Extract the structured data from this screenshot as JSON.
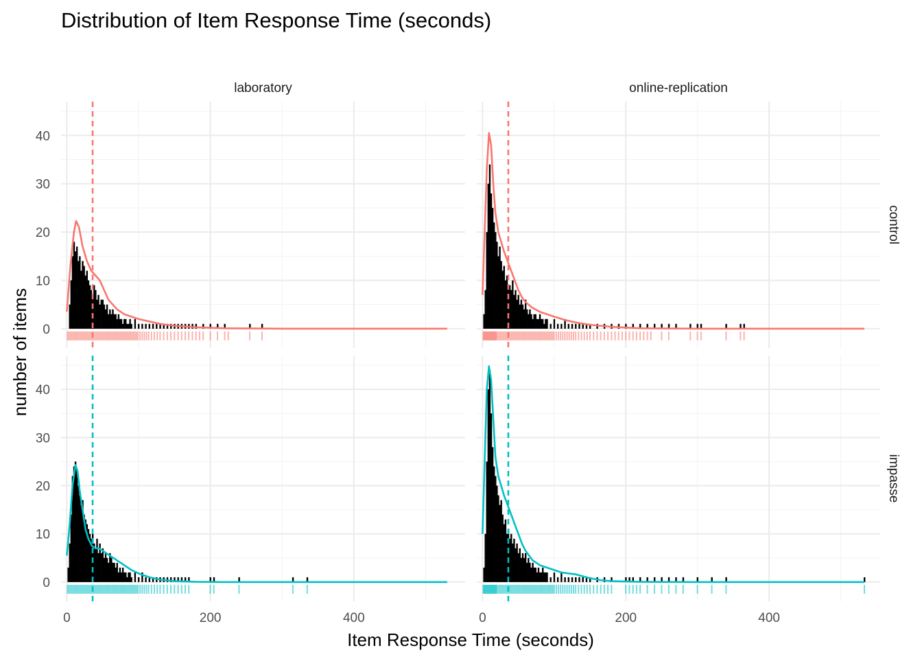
{
  "chart_data": {
    "type": "histogram",
    "title": "Distribution of Item Response Time (seconds)",
    "xlabel": "Item Response Time (seconds)",
    "ylabel": "number of items",
    "xlim": [
      -8,
      555
    ],
    "ylim": [
      -4,
      47
    ],
    "x_ticks": [
      0,
      200,
      400
    ],
    "y_ticks": [
      0,
      10,
      20,
      30,
      40
    ],
    "grid": true,
    "col_facets": [
      "laboratory",
      "online-replication"
    ],
    "row_facets": [
      "control",
      "impasse"
    ],
    "colors": {
      "control": "#F8766D",
      "impasse": "#00BFC4",
      "bars": "#000000",
      "grid": "#EBEBEB"
    },
    "mean_lines": {
      "control": 36,
      "impasse": 36
    },
    "panels": [
      {
        "col": "laboratory",
        "row": "control",
        "color": "#F8766D",
        "bars": {
          "x": [
            4,
            6,
            8,
            10,
            12,
            14,
            16,
            18,
            20,
            22,
            24,
            26,
            28,
            30,
            32,
            34,
            36,
            38,
            40,
            42,
            44,
            46,
            48,
            50,
            52,
            54,
            56,
            58,
            60,
            62,
            64,
            66,
            68,
            70,
            72,
            74,
            76,
            78,
            80,
            82,
            84,
            86,
            88,
            90,
            95,
            100,
            105,
            110,
            115,
            120,
            125,
            130,
            135,
            140,
            145,
            150,
            155,
            160,
            165,
            170,
            175,
            180,
            190,
            200,
            210,
            220,
            255,
            272
          ],
          "y": [
            5,
            10,
            15,
            18,
            16,
            17,
            14,
            15,
            12,
            14,
            13,
            11,
            12,
            10,
            9,
            8,
            7,
            9,
            8,
            6,
            7,
            5,
            6,
            6,
            5,
            4,
            5,
            3,
            4,
            3,
            4,
            3,
            3,
            2,
            3,
            2,
            2,
            1,
            2,
            2,
            1,
            1,
            2,
            1,
            2,
            1,
            1,
            1,
            1,
            1,
            1,
            1,
            1,
            1,
            1,
            1,
            1,
            1,
            1,
            1,
            1,
            1,
            1,
            1,
            1,
            1,
            1,
            1
          ]
        },
        "density": {
          "x": [
            0,
            5,
            10,
            13,
            17,
            22,
            28,
            34,
            40,
            46,
            52,
            58,
            64,
            70,
            80,
            90,
            100,
            115,
            130,
            150,
            180,
            220,
            300,
            400,
            530
          ],
          "y": [
            3.5,
            13,
            20,
            22.3,
            21,
            17,
            14,
            12,
            11,
            10,
            8,
            6,
            5,
            4,
            3,
            2.5,
            2,
            1.5,
            1,
            0.6,
            0.3,
            0.1,
            0,
            0,
            0
          ]
        },
        "rug": [
          1,
          3,
          5,
          7,
          9,
          11,
          13,
          15,
          17,
          19,
          21,
          23,
          25,
          27,
          29,
          31,
          33,
          35,
          37,
          39,
          41,
          43,
          45,
          47,
          49,
          51,
          53,
          55,
          57,
          59,
          61,
          63,
          65,
          67,
          69,
          71,
          73,
          75,
          77,
          79,
          81,
          83,
          85,
          87,
          89,
          91,
          93,
          95,
          97,
          99,
          102,
          105,
          108,
          111,
          114,
          118,
          122,
          126,
          130,
          135,
          140,
          145,
          150,
          155,
          160,
          165,
          170,
          175,
          180,
          185,
          190,
          200,
          210,
          220,
          225,
          255,
          272
        ]
      },
      {
        "col": "online-replication",
        "row": "control",
        "color": "#F8766D",
        "bars": {
          "x": [
            2,
            4,
            6,
            8,
            10,
            12,
            14,
            16,
            18,
            20,
            22,
            24,
            26,
            28,
            30,
            32,
            34,
            36,
            38,
            40,
            42,
            44,
            46,
            48,
            50,
            52,
            54,
            56,
            58,
            60,
            62,
            64,
            66,
            68,
            70,
            72,
            74,
            76,
            78,
            80,
            82,
            84,
            86,
            88,
            90,
            95,
            100,
            105,
            110,
            115,
            120,
            125,
            130,
            135,
            140,
            145,
            150,
            160,
            170,
            180,
            190,
            200,
            210,
            220,
            230,
            240,
            250,
            260,
            270,
            290,
            300,
            305,
            340,
            360,
            365
          ],
          "y": [
            3,
            8,
            20,
            30,
            34,
            28,
            25,
            22,
            20,
            18,
            15,
            17,
            14,
            12,
            13,
            10,
            11,
            9,
            9,
            8,
            10,
            7,
            8,
            6,
            7,
            5,
            6,
            5,
            4,
            6,
            4,
            3,
            4,
            3,
            2,
            3,
            3,
            2,
            2,
            3,
            2,
            2,
            1,
            2,
            2,
            1,
            2,
            1,
            1,
            2,
            1,
            1,
            1,
            1,
            1,
            1,
            1,
            1,
            1,
            1,
            1,
            1,
            1,
            1,
            1,
            1,
            1,
            1,
            1,
            1,
            1,
            1,
            1,
            1,
            1
          ]
        },
        "density": {
          "x": [
            0,
            3,
            6,
            9,
            12,
            15,
            18,
            22,
            26,
            30,
            35,
            40,
            45,
            50,
            55,
            60,
            70,
            80,
            90,
            100,
            115,
            130,
            150,
            180,
            220,
            300,
            400,
            533
          ],
          "y": [
            7,
            20,
            33,
            40.5,
            38,
            30,
            24,
            20,
            18,
            16,
            14,
            12,
            10,
            8,
            6.5,
            5.5,
            4.3,
            3.5,
            3,
            2.5,
            1.8,
            1.3,
            0.8,
            0.4,
            0.1,
            0,
            0,
            0
          ]
        },
        "rug": [
          1,
          2,
          3,
          4,
          5,
          6,
          7,
          8,
          9,
          10,
          11,
          12,
          13,
          14,
          15,
          16,
          17,
          18,
          19,
          20,
          22,
          24,
          26,
          28,
          30,
          32,
          34,
          36,
          38,
          40,
          42,
          44,
          46,
          48,
          50,
          52,
          54,
          56,
          58,
          60,
          62,
          64,
          66,
          68,
          70,
          72,
          74,
          76,
          78,
          80,
          82,
          84,
          86,
          88,
          90,
          92,
          94,
          96,
          98,
          100,
          103,
          106,
          109,
          112,
          115,
          118,
          121,
          124,
          127,
          130,
          134,
          138,
          142,
          146,
          150,
          155,
          160,
          165,
          170,
          175,
          180,
          185,
          190,
          195,
          200,
          205,
          210,
          215,
          220,
          225,
          230,
          235,
          250,
          260,
          290,
          300,
          305,
          340,
          360,
          365
        ]
      },
      {
        "col": "laboratory",
        "row": "impasse",
        "color": "#00BFC4",
        "bars": {
          "x": [
            2,
            4,
            6,
            8,
            10,
            12,
            14,
            16,
            18,
            20,
            22,
            24,
            26,
            28,
            30,
            32,
            34,
            36,
            38,
            40,
            42,
            44,
            46,
            48,
            50,
            52,
            54,
            56,
            58,
            60,
            62,
            64,
            66,
            68,
            70,
            72,
            74,
            76,
            78,
            80,
            82,
            84,
            86,
            88,
            90,
            95,
            100,
            105,
            110,
            115,
            120,
            125,
            130,
            135,
            140,
            145,
            150,
            155,
            160,
            165,
            170,
            200,
            205,
            240,
            315,
            335
          ],
          "y": [
            3,
            8,
            14,
            22,
            24,
            25,
            23,
            20,
            18,
            16,
            17,
            14,
            13,
            12,
            11,
            10,
            9,
            10,
            8,
            7,
            9,
            6,
            8,
            6,
            7,
            5,
            6,
            5,
            4,
            6,
            5,
            4,
            4,
            3,
            4,
            2,
            3,
            2,
            3,
            2,
            2,
            1,
            2,
            2,
            1,
            2,
            1,
            2,
            1,
            1,
            1,
            1,
            1,
            1,
            1,
            1,
            1,
            1,
            1,
            1,
            1,
            1,
            1,
            1,
            1,
            1
          ]
        },
        "density": {
          "x": [
            0,
            4,
            8,
            12,
            15,
            18,
            22,
            26,
            30,
            35,
            40,
            45,
            50,
            55,
            60,
            65,
            70,
            80,
            90,
            100,
            115,
            130,
            150,
            180,
            220,
            300,
            400,
            530
          ],
          "y": [
            5.5,
            12,
            20,
            24.3,
            23,
            19,
            15,
            11,
            9,
            7.5,
            7,
            7,
            6.5,
            6,
            5.5,
            5,
            4.5,
            3.5,
            2.5,
            1.8,
            1,
            0.5,
            0.2,
            0.05,
            0,
            0,
            0,
            0
          ]
        },
        "rug": [
          1,
          3,
          5,
          7,
          9,
          11,
          13,
          15,
          17,
          19,
          21,
          23,
          25,
          27,
          29,
          31,
          33,
          35,
          37,
          39,
          41,
          43,
          45,
          47,
          49,
          51,
          53,
          55,
          57,
          59,
          61,
          63,
          65,
          67,
          69,
          71,
          73,
          75,
          77,
          79,
          81,
          83,
          85,
          87,
          89,
          91,
          93,
          95,
          97,
          99,
          102,
          105,
          108,
          111,
          114,
          118,
          122,
          126,
          130,
          135,
          140,
          145,
          150,
          155,
          160,
          165,
          170,
          200,
          205,
          240,
          315,
          335
        ]
      },
      {
        "col": "online-replication",
        "row": "impasse",
        "color": "#00BFC4",
        "bars": {
          "x": [
            2,
            4,
            6,
            8,
            10,
            12,
            14,
            16,
            18,
            20,
            22,
            24,
            26,
            28,
            30,
            32,
            34,
            36,
            38,
            40,
            42,
            44,
            46,
            48,
            50,
            52,
            54,
            56,
            58,
            60,
            62,
            64,
            66,
            68,
            70,
            72,
            74,
            76,
            78,
            80,
            82,
            84,
            86,
            88,
            90,
            95,
            100,
            105,
            110,
            115,
            120,
            125,
            130,
            135,
            140,
            145,
            150,
            160,
            170,
            180,
            200,
            205,
            210,
            220,
            230,
            240,
            250,
            260,
            270,
            280,
            300,
            320,
            340,
            533
          ],
          "y": [
            3,
            10,
            25,
            40,
            44,
            35,
            28,
            24,
            22,
            20,
            18,
            16,
            17,
            14,
            12,
            13,
            10,
            11,
            9,
            10,
            8,
            9,
            7,
            8,
            6,
            7,
            5,
            6,
            5,
            6,
            4,
            5,
            4,
            3,
            4,
            3,
            3,
            2,
            3,
            2,
            2,
            3,
            2,
            2,
            2,
            1,
            2,
            1,
            2,
            1,
            1,
            1,
            1,
            1,
            1,
            1,
            1,
            1,
            1,
            1,
            1,
            1,
            1,
            1,
            1,
            1,
            1,
            1,
            1,
            1,
            1,
            1,
            1,
            1
          ]
        },
        "density": {
          "x": [
            0,
            3,
            6,
            9,
            12,
            15,
            18,
            22,
            26,
            30,
            35,
            40,
            45,
            50,
            55,
            60,
            70,
            80,
            90,
            100,
            110,
            120,
            130,
            140,
            150,
            165,
            180,
            220,
            300,
            400,
            533
          ],
          "y": [
            10,
            25,
            40,
            44.8,
            42,
            34,
            26,
            22,
            20,
            18,
            16,
            14,
            12,
            10,
            8,
            6.5,
            4.5,
            3.5,
            3,
            2.5,
            2,
            1.8,
            1.6,
            1.2,
            0.8,
            0.4,
            0.2,
            0.05,
            0,
            0,
            0
          ]
        },
        "rug": [
          1,
          2,
          3,
          4,
          5,
          6,
          7,
          8,
          9,
          10,
          11,
          12,
          13,
          14,
          15,
          16,
          17,
          18,
          19,
          20,
          22,
          24,
          26,
          28,
          30,
          32,
          34,
          36,
          38,
          40,
          42,
          44,
          46,
          48,
          50,
          52,
          54,
          56,
          58,
          60,
          62,
          64,
          66,
          68,
          70,
          72,
          74,
          76,
          78,
          80,
          82,
          84,
          86,
          88,
          90,
          92,
          94,
          96,
          98,
          100,
          103,
          106,
          109,
          112,
          115,
          118,
          121,
          124,
          127,
          130,
          134,
          138,
          142,
          146,
          150,
          155,
          160,
          165,
          170,
          175,
          180,
          200,
          205,
          210,
          215,
          220,
          230,
          240,
          250,
          260,
          270,
          280,
          300,
          320,
          340,
          533
        ]
      }
    ]
  }
}
